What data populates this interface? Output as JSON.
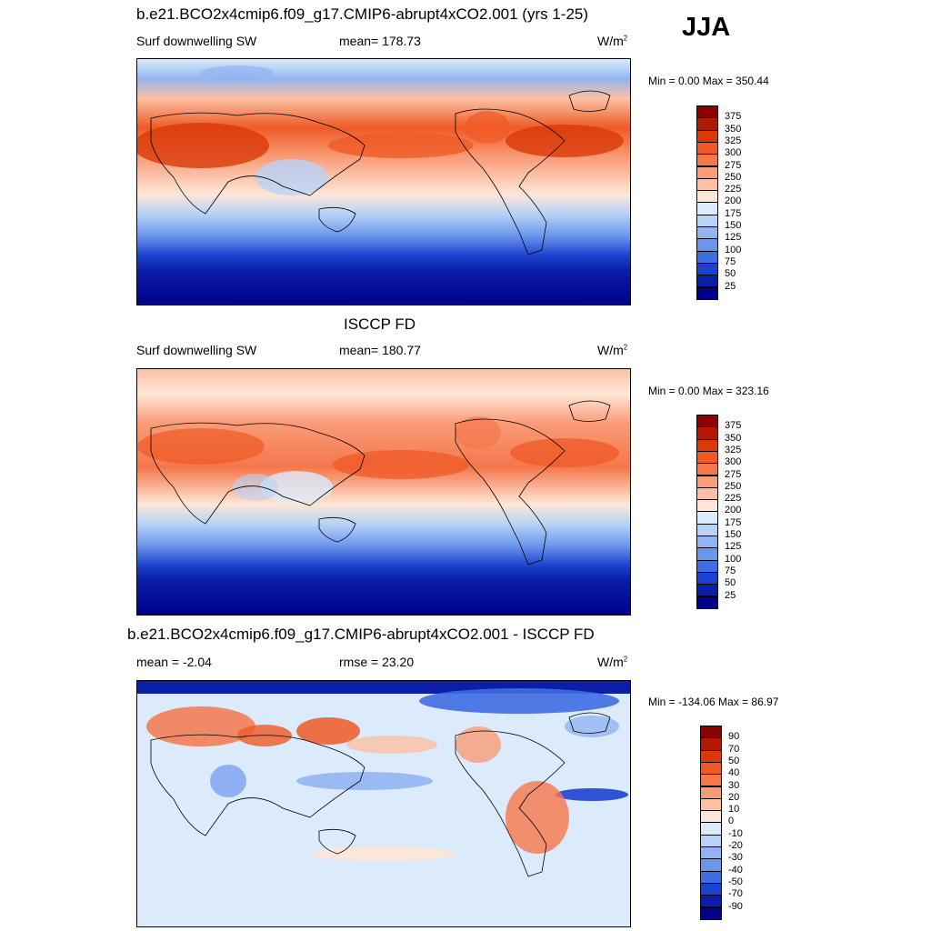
{
  "season": "JJA",
  "units": "W/m2",
  "panels": [
    {
      "title": "b.e21.BCO2x4cmip6.f09_g17.CMIP6-abrupt4xCO2.001 (yrs 1-25)",
      "left_label": "Surf downwelling SW",
      "mid_label": "mean= 178.73",
      "unit_label": "W/m",
      "unit_sup": "2",
      "minmax": "Min =   0.00 Max = 350.44",
      "colorbar": {
        "labels": [
          "375",
          "350",
          "325",
          "300",
          "275",
          "250",
          "225",
          "200",
          "175",
          "150",
          "125",
          "100",
          "75",
          "50",
          "25"
        ],
        "colors": [
          "#8b0000",
          "#b31800",
          "#d93a08",
          "#ef5a25",
          "#f5774b",
          "#f99c78",
          "#fcc1a3",
          "#fee6d6",
          "#dcebfb",
          "#b8d3f7",
          "#92b5f2",
          "#6c96ec",
          "#3f6ee2",
          "#1b43cf",
          "#0a1ea8",
          "#00008b"
        ]
      }
    },
    {
      "title": "ISCCP FD",
      "left_label": "Surf downwelling SW",
      "mid_label": "mean= 180.77",
      "unit_label": "W/m",
      "unit_sup": "2",
      "minmax": "Min =   0.00 Max = 323.16",
      "colorbar": {
        "labels": [
          "375",
          "350",
          "325",
          "300",
          "275",
          "250",
          "225",
          "200",
          "175",
          "150",
          "125",
          "100",
          "75",
          "50",
          "25"
        ],
        "colors": [
          "#8b0000",
          "#b31800",
          "#d93a08",
          "#ef5a25",
          "#f5774b",
          "#f99c78",
          "#fcc1a3",
          "#fee6d6",
          "#dcebfb",
          "#b8d3f7",
          "#92b5f2",
          "#6c96ec",
          "#3f6ee2",
          "#1b43cf",
          "#0a1ea8",
          "#00008b"
        ]
      }
    },
    {
      "title": "b.e21.BCO2x4cmip6.f09_g17.CMIP6-abrupt4xCO2.001 - ISCCP FD",
      "left_label": "mean =  -2.04",
      "mid_label": "rmse =  23.20",
      "unit_label": "W/m",
      "unit_sup": "2",
      "minmax": "Min = -134.06 Max =  86.97",
      "colorbar": {
        "labels": [
          "90",
          "70",
          "50",
          "40",
          "30",
          "20",
          "10",
          "0",
          "-10",
          "-20",
          "-30",
          "-40",
          "-50",
          "-70",
          "-90"
        ],
        "colors": [
          "#8b0000",
          "#b31800",
          "#d93a08",
          "#ef5a25",
          "#f5774b",
          "#f99c78",
          "#fcc1a3",
          "#fee6d6",
          "#dcebfb",
          "#b8d3f7",
          "#92b5f2",
          "#6c96ec",
          "#3f6ee2",
          "#1b43cf",
          "#0a1ea8",
          "#00008b"
        ]
      }
    }
  ]
}
